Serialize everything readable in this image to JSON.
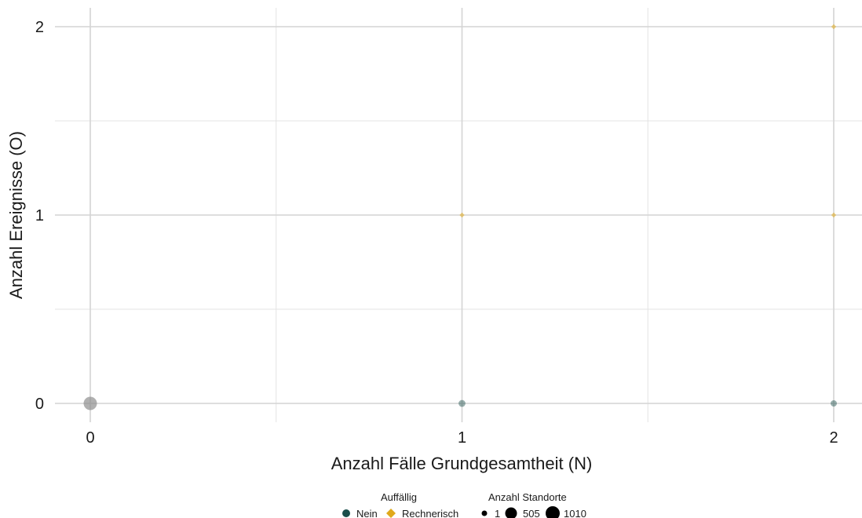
{
  "chart_data": {
    "type": "scatter",
    "xlabel": "Anzahl Fälle Grundgesamtheit (N)",
    "ylabel": "Anzahl Ereignisse (O)",
    "xlim": [
      0,
      2
    ],
    "ylim": [
      0,
      2
    ],
    "x_ticks": [
      0,
      1,
      2
    ],
    "y_ticks": [
      0,
      1,
      2
    ],
    "grid": true,
    "legend_position": "bottom",
    "legend": {
      "color_title": "Auffällig",
      "color_entries": [
        {
          "label": "Nein",
          "shape": "circle",
          "color": "#1a4e4a"
        },
        {
          "label": "Rechnerisch",
          "shape": "diamond",
          "color": "#e0a91b"
        }
      ],
      "size_title": "Anzahl Standorte",
      "size_entries": [
        {
          "label": "1",
          "value": 1
        },
        {
          "label": "505",
          "value": 505
        },
        {
          "label": "1010",
          "value": 1010
        }
      ]
    },
    "series": [
      {
        "name": "Nein",
        "shape": "circle",
        "color": "#1a4e4a",
        "points": [
          {
            "x": 0,
            "y": 0,
            "n": 1010
          },
          {
            "x": 1,
            "y": 0,
            "n": 30
          },
          {
            "x": 2,
            "y": 0,
            "n": 10
          }
        ]
      },
      {
        "name": "Rechnerisch",
        "shape": "diamond",
        "color": "#e0a91b",
        "points": [
          {
            "x": 1,
            "y": 1,
            "n": 1
          },
          {
            "x": 2,
            "y": 1,
            "n": 1
          },
          {
            "x": 2,
            "y": 2,
            "n": 1
          }
        ]
      }
    ]
  }
}
